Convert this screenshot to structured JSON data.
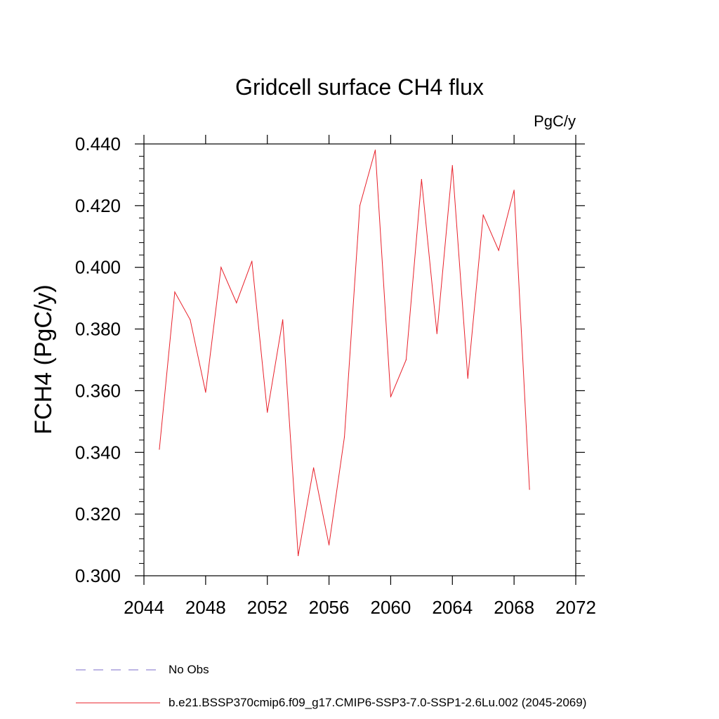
{
  "chart_data": {
    "type": "line",
    "title": "Gridcell surface CH4 flux",
    "units": "PgC/y",
    "ylabel": "FCH4  (PgC/y)",
    "xlabel": "",
    "xlim": [
      2044,
      2072
    ],
    "ylim": [
      0.3,
      0.44
    ],
    "x_ticks": [
      {
        "value": 2044,
        "label": "2044"
      },
      {
        "value": 2048,
        "label": "2048"
      },
      {
        "value": 2052,
        "label": "2052"
      },
      {
        "value": 2056,
        "label": "2056"
      },
      {
        "value": 2060,
        "label": "2060"
      },
      {
        "value": 2064,
        "label": "2064"
      },
      {
        "value": 2068,
        "label": "2068"
      },
      {
        "value": 2072,
        "label": "2072"
      }
    ],
    "y_ticks": [
      {
        "value": 0.3,
        "label": "0.300"
      },
      {
        "value": 0.32,
        "label": "0.320"
      },
      {
        "value": 0.34,
        "label": "0.340"
      },
      {
        "value": 0.36,
        "label": "0.360"
      },
      {
        "value": 0.38,
        "label": "0.380"
      },
      {
        "value": 0.4,
        "label": "0.400"
      },
      {
        "value": 0.42,
        "label": "0.420"
      },
      {
        "value": 0.44,
        "label": "0.440"
      }
    ],
    "grid": false,
    "legend_position": "bottom-left",
    "series": [
      {
        "name": "b.e21.BSSP370cmip6.f09_g17.CMIP6-SSP3-7.0-SSP1-2.6Lu.002 (2045-2069)",
        "color": "#e8202a",
        "dash": "solid",
        "x": [
          2045,
          2046,
          2047,
          2048,
          2049,
          2050,
          2051,
          2052,
          2053,
          2054,
          2055,
          2056,
          2057,
          2058,
          2059,
          2060,
          2061,
          2062,
          2063,
          2064,
          2065,
          2066,
          2067,
          2068,
          2069
        ],
        "values": [
          0.341,
          0.392,
          0.383,
          0.3595,
          0.4,
          0.3885,
          0.402,
          0.353,
          0.383,
          0.3065,
          0.335,
          0.31,
          0.345,
          0.42,
          0.438,
          0.358,
          0.37,
          0.4285,
          0.3785,
          0.433,
          0.364,
          0.417,
          0.4055,
          0.425,
          0.328
        ]
      }
    ],
    "legend": [
      {
        "label": "No Obs",
        "color": "#7b6cc8",
        "dash": "dashed"
      },
      {
        "label": "b.e21.BSSP370cmip6.f09_g17.CMIP6-SSP3-7.0-SSP1-2.6Lu.002 (2045-2069)",
        "color": "#e8202a",
        "dash": "solid"
      }
    ]
  }
}
